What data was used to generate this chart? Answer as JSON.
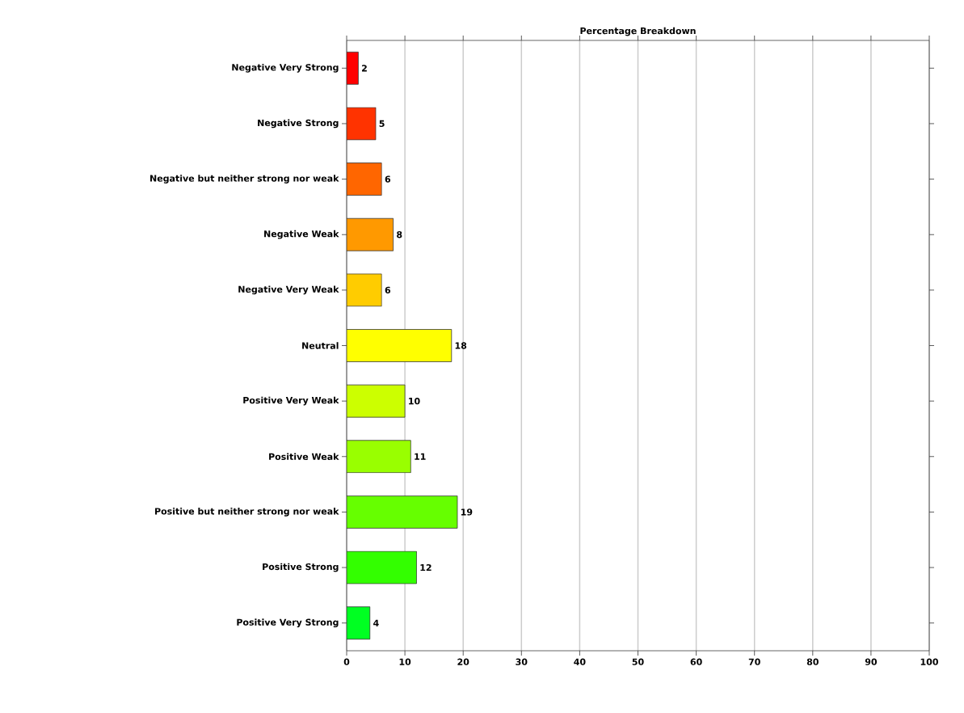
{
  "chart_data": {
    "type": "bar",
    "orientation": "horizontal",
    "title": "Percentage Breakdown",
    "categories": [
      "Negative Very Strong",
      "Negative Strong",
      "Negative but neither strong nor weak",
      "Negative Weak",
      "Negative Very Weak",
      "Neutral",
      "Positive Very Weak",
      "Positive Weak",
      "Positive but neither strong nor weak",
      "Positive Strong",
      "Positive Very Strong"
    ],
    "values": [
      2,
      5,
      6,
      8,
      6,
      18,
      10,
      11,
      19,
      12,
      4
    ],
    "colors": [
      "#ff0000",
      "#ff3300",
      "#ff6600",
      "#ff9900",
      "#ffcc00",
      "#ffff00",
      "#ccff00",
      "#99ff00",
      "#66ff00",
      "#33ff00",
      "#00ff22"
    ],
    "xlim": [
      0,
      100
    ],
    "xticks": [
      0,
      10,
      20,
      30,
      40,
      50,
      60,
      70,
      80,
      90,
      100
    ],
    "grid": "x",
    "data_labels": true
  }
}
